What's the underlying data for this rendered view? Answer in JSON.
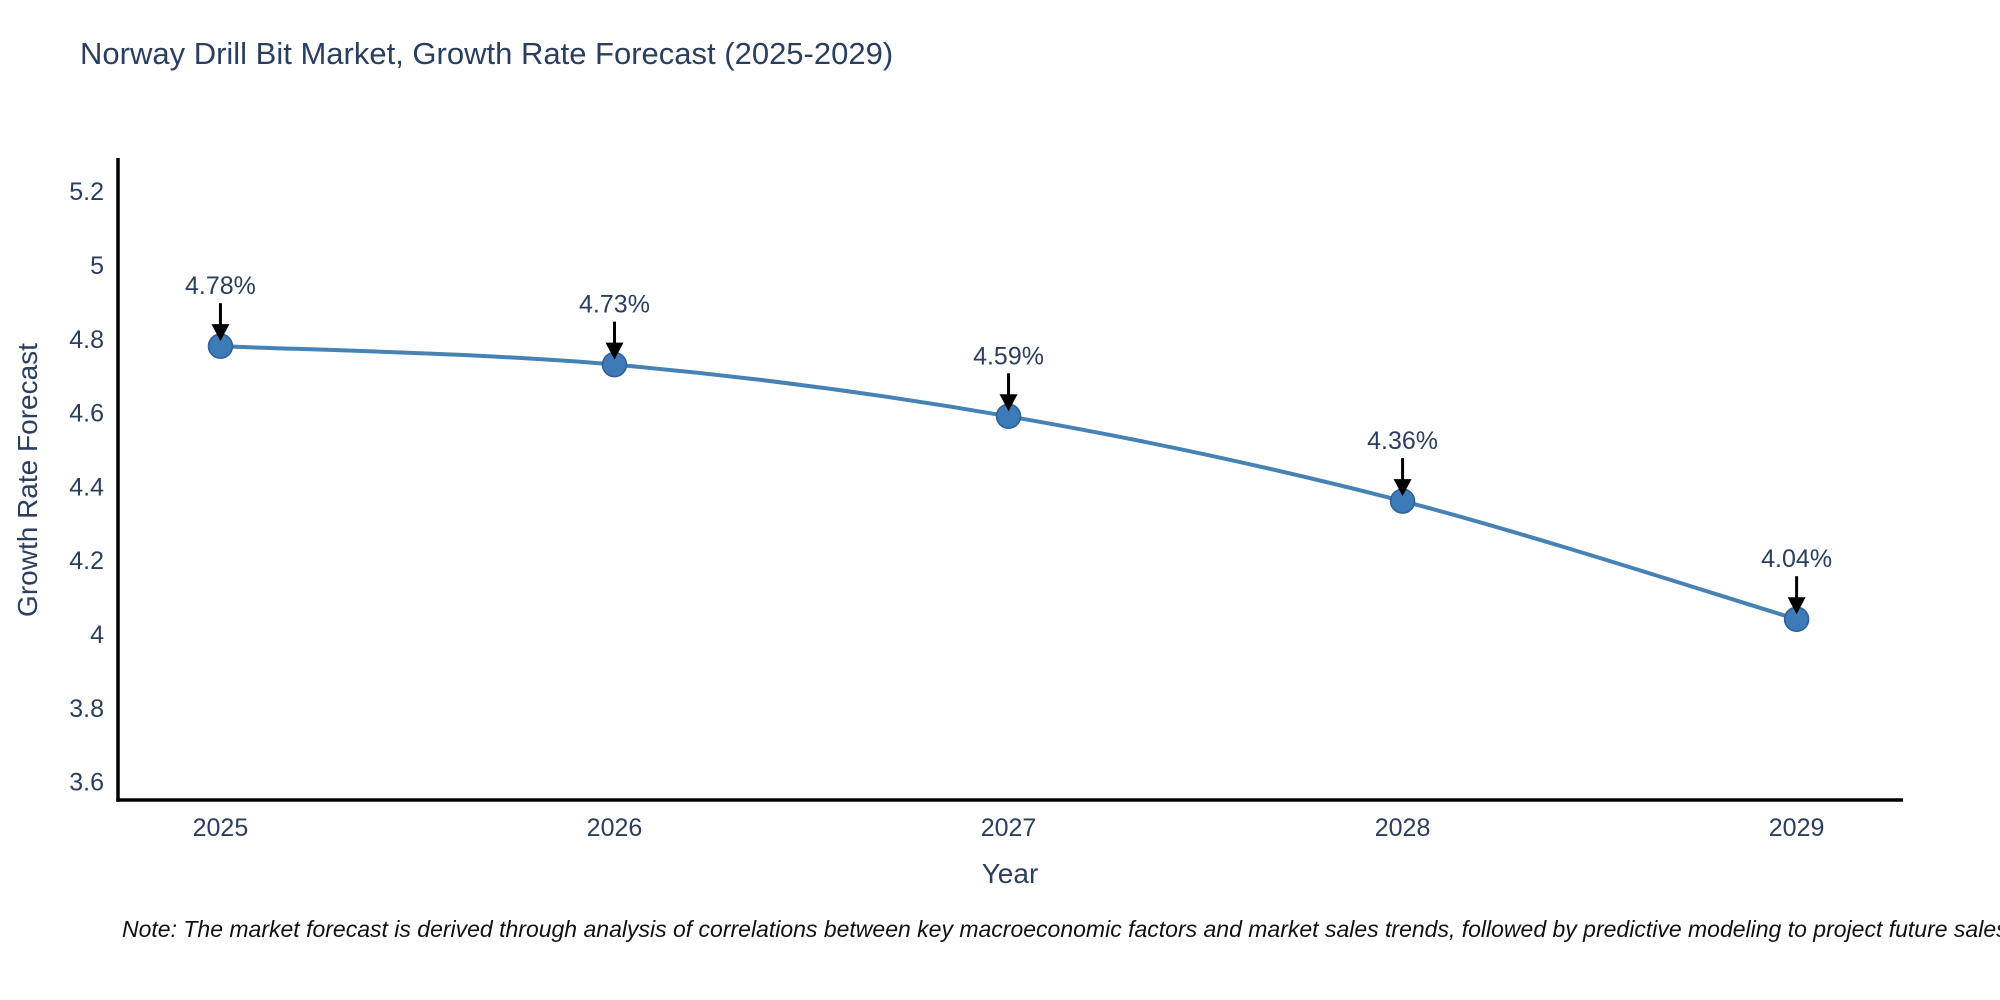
{
  "page": {
    "background": "#ffffff"
  },
  "chart_data": {
    "type": "line",
    "title": "Norway Drill Bit Market, Growth Rate Forecast (2025-2029)",
    "xlabel": "Year",
    "ylabel": "Growth Rate Forecast",
    "x": [
      2025,
      2026,
      2027,
      2028,
      2029
    ],
    "series": [
      {
        "name": "Growth Rate Forecast",
        "values": [
          4.78,
          4.73,
          4.59,
          4.36,
          4.04
        ],
        "point_labels": [
          "4.78%",
          "4.73%",
          "4.59%",
          "4.36%",
          "4.04%"
        ]
      }
    ],
    "x_tick_labels": [
      "2025",
      "2026",
      "2027",
      "2028",
      "2029"
    ],
    "y_ticks": [
      3.6,
      3.8,
      4,
      4.2,
      4.4,
      4.6,
      4.8,
      5,
      5.2
    ],
    "y_tick_labels": [
      "3.6",
      "3.8",
      "4",
      "4.2",
      "4.4",
      "4.6",
      "4.8",
      "5",
      "5.2"
    ],
    "xlim": [
      2024.74,
      2029.27
    ],
    "ylim": [
      3.55,
      5.29
    ],
    "grid": false,
    "legend_position": "none",
    "line_shape": "spline",
    "annotations_have_arrows": true,
    "colors": {
      "line": "#4682b4",
      "marker_fill": "#3d7ab8",
      "marker_edge": "#2e5f94",
      "axis_line": "#000000",
      "tick_text": "#2a3f5f",
      "title_text": "#2a3f5f",
      "annotation_text": "#2a3f5f",
      "arrow": "#000000"
    }
  },
  "note": "Note: The market forecast is derived through analysis of correlations between key macroeconomic factors and market sales trends, followed by predictive modeling to project future sales"
}
